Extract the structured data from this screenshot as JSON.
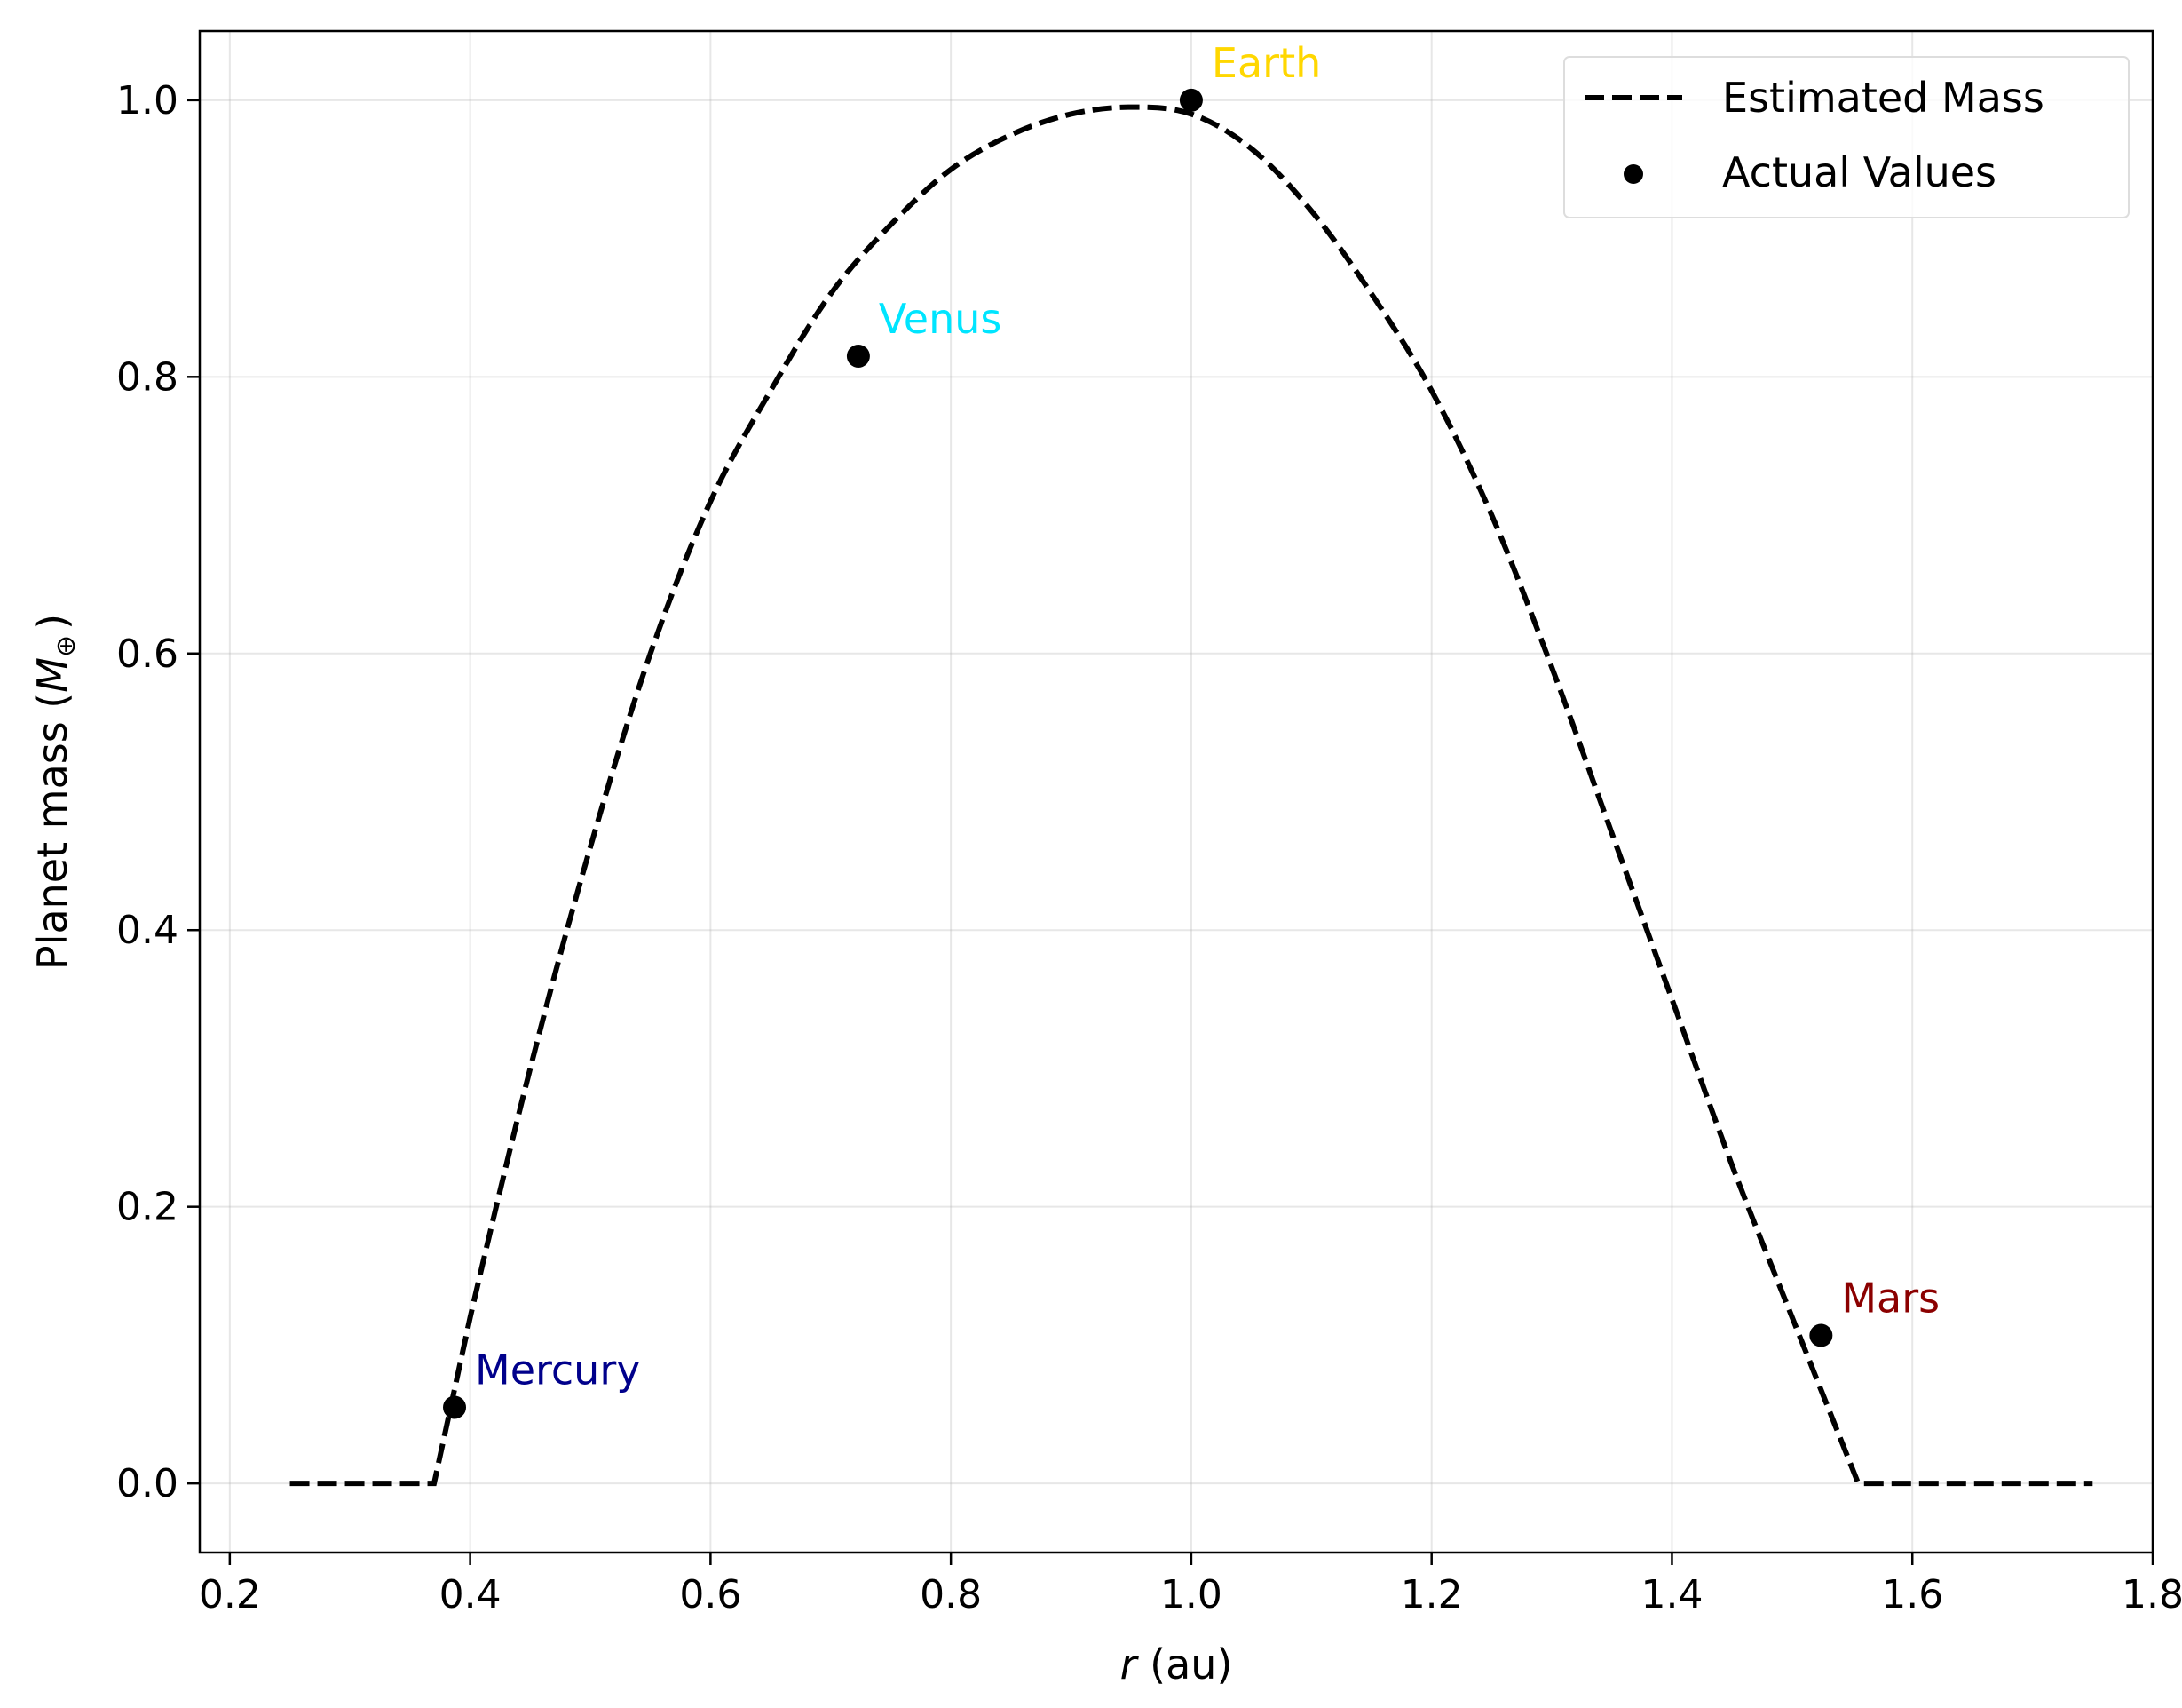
{
  "chart_data": {
    "type": "line",
    "xlabel": "r (au)",
    "xlabel_parts": {
      "var": "r",
      "unit": " (au)"
    },
    "ylabel": "Planet mass (M⊕)",
    "ylabel_parts": {
      "prefix": "Planet mass (",
      "var": "M",
      "sub": "⊕",
      "suffix": ")"
    },
    "xlim": [
      0.175,
      1.8
    ],
    "ylim": [
      -0.05,
      1.05
    ],
    "xticks": [
      0.2,
      0.4,
      0.6,
      0.8,
      1.0,
      1.2,
      1.4,
      1.6,
      1.8
    ],
    "xtick_labels": [
      "0.2",
      "0.4",
      "0.6",
      "0.8",
      "1.0",
      "1.2",
      "1.4",
      "1.6",
      "1.8"
    ],
    "yticks": [
      0.0,
      0.2,
      0.4,
      0.6,
      0.8,
      1.0
    ],
    "ytick_labels": [
      "0.0",
      "0.2",
      "0.4",
      "0.6",
      "0.8",
      "1.0"
    ],
    "grid": true,
    "legend_position": "top-right",
    "series": [
      {
        "name": "Estimated Mass",
        "style": "dashed",
        "color": "#000000",
        "x": [
          0.25,
          0.3,
          0.35,
          0.37,
          0.4,
          0.45,
          0.5,
          0.55,
          0.6,
          0.65,
          0.7,
          0.75,
          0.8,
          0.85,
          0.9,
          0.95,
          1.0,
          1.05,
          1.1,
          1.15,
          1.2,
          1.25,
          1.3,
          1.35,
          1.4,
          1.45,
          1.5,
          1.555,
          1.6,
          1.65,
          1.7,
          1.75
        ],
        "y": [
          0.0,
          0.0,
          0.0,
          0.0,
          0.12,
          0.3,
          0.46,
          0.6,
          0.71,
          0.79,
          0.86,
          0.91,
          0.95,
          0.975,
          0.99,
          0.995,
          0.99,
          0.965,
          0.92,
          0.86,
          0.79,
          0.7,
          0.59,
          0.47,
          0.35,
          0.23,
          0.12,
          0.0,
          0.0,
          0.0,
          0.0,
          0.0
        ]
      },
      {
        "name": "Actual Values",
        "style": "markers",
        "color": "#000000",
        "points": [
          {
            "label": "Mercury",
            "x": 0.387,
            "y": 0.055,
            "color": "#00008b"
          },
          {
            "label": "Venus",
            "x": 0.723,
            "y": 0.815,
            "color": "#00e5ff"
          },
          {
            "label": "Earth",
            "x": 1.0,
            "y": 1.0,
            "color": "#ffd700"
          },
          {
            "label": "Mars",
            "x": 1.524,
            "y": 0.107,
            "color": "#8b0000"
          }
        ]
      }
    ]
  }
}
